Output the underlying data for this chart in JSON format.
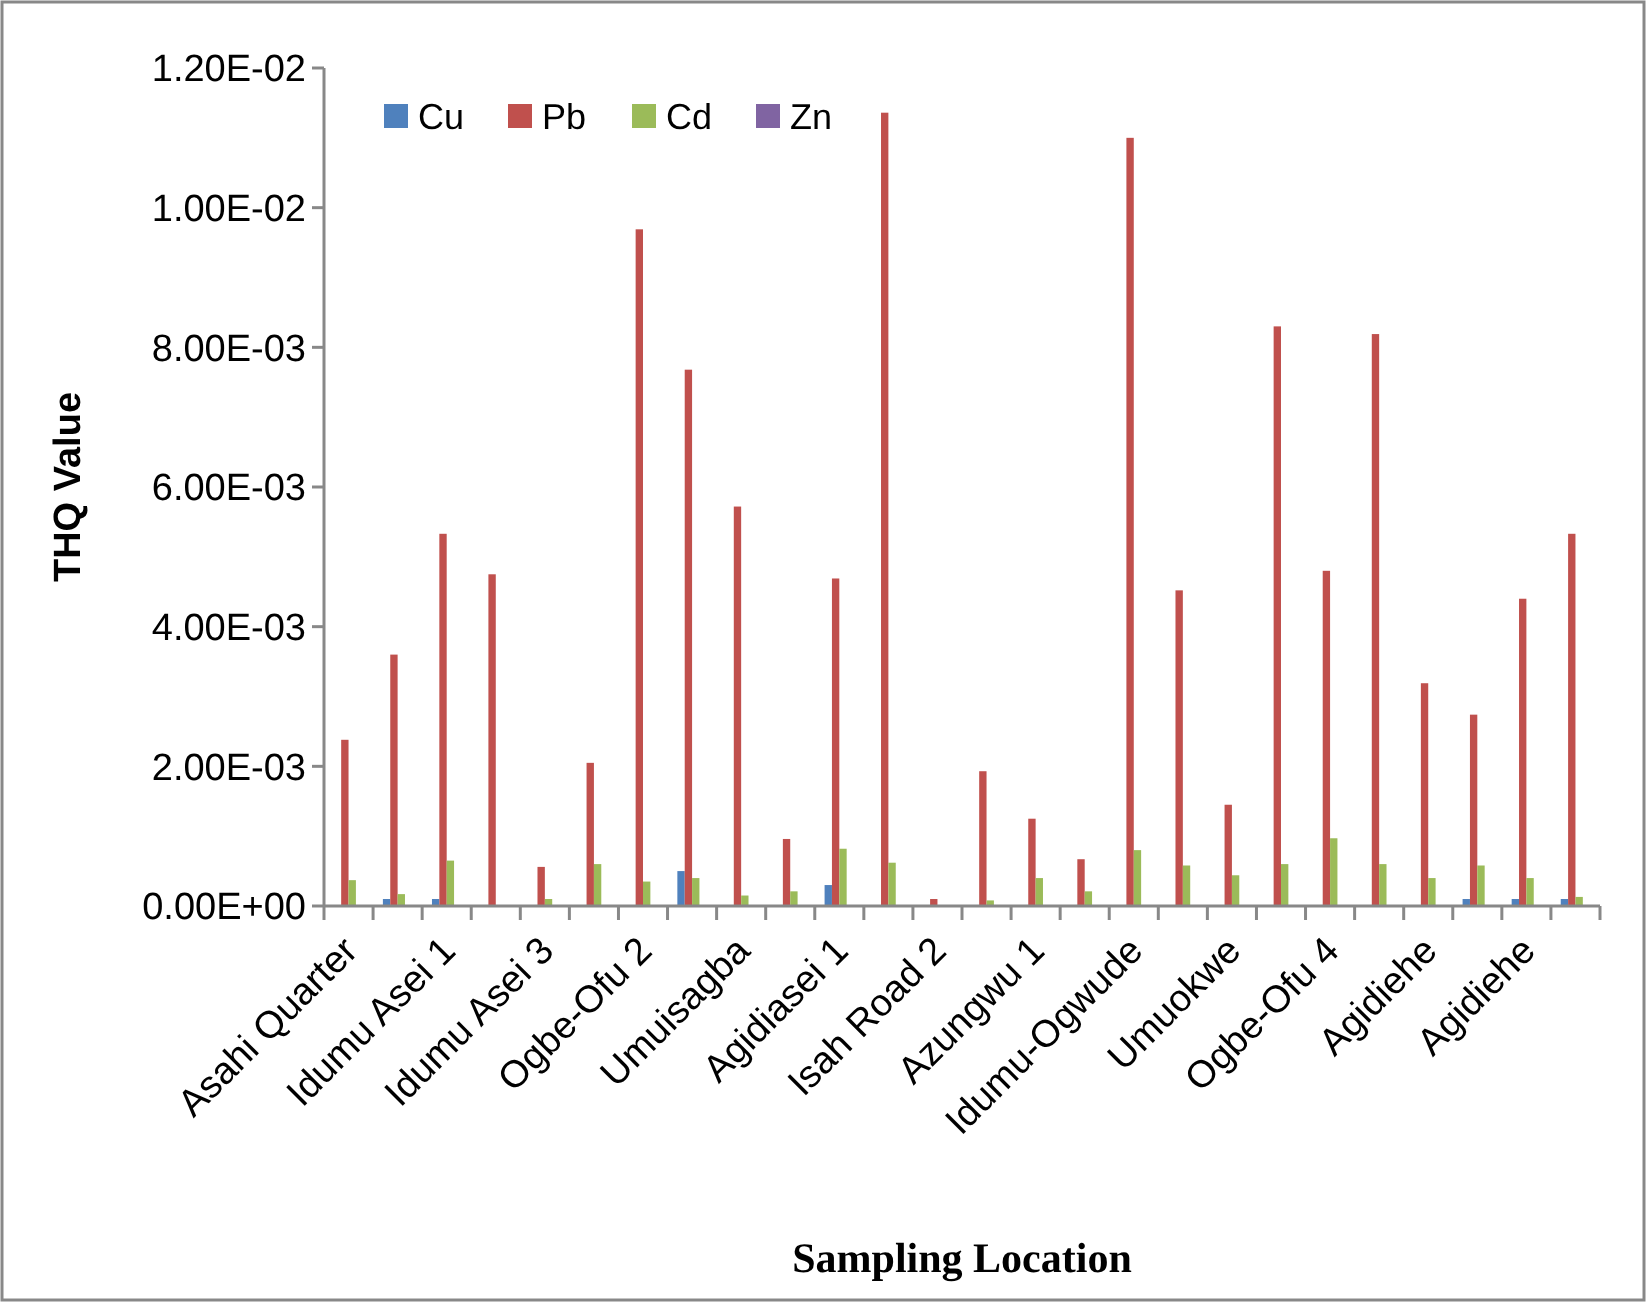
{
  "chart_data": {
    "type": "bar",
    "xlabel": "Sampling Location",
    "ylabel": "THQ Value",
    "categories": [
      "Asahi Quarter",
      null,
      "Idumu Asei 1",
      null,
      "Idumu Asei 3",
      null,
      "Ogbe-Ofu 2",
      null,
      "Umuisagba",
      null,
      "Agidiasei 1",
      null,
      "Isah Road 2",
      null,
      "Azungwu 1",
      null,
      "Idumu-Ogwude",
      null,
      "Umuokwe",
      null,
      "Ogbe-Ofu 4",
      null,
      "Agidiehe",
      null,
      "Agidiehe",
      null
    ],
    "series": [
      {
        "name": "Cu",
        "color": "#4f81bd",
        "values": [
          0,
          0.0001,
          0.0001,
          0,
          0,
          0,
          0,
          0.0005,
          0,
          0,
          0.0003,
          0,
          0,
          0,
          0,
          0,
          0,
          0,
          0,
          0,
          0,
          0,
          0,
          0.0001,
          0.0001,
          0.0001
        ]
      },
      {
        "name": "Pb",
        "color": "#c0504d",
        "values": [
          0.00238,
          0.0036,
          0.00533,
          0.00475,
          0.00056,
          0.00205,
          0.00969,
          0.00768,
          0.00572,
          0.00096,
          0.00469,
          0.01136,
          0.0001,
          0.00193,
          0.00125,
          0.00067,
          0.011,
          0.00452,
          0.00145,
          0.0083,
          0.0048,
          0.00819,
          0.00319,
          0.00274,
          0.0044,
          0.00533
        ]
      },
      {
        "name": "Cd",
        "color": "#9bbb59",
        "values": [
          0.00037,
          0.00017,
          0.00065,
          0,
          0.0001,
          0.0006,
          0.00035,
          0.0004,
          0.00015,
          0.00021,
          0.00082,
          0.00062,
          0,
          8e-05,
          0.0004,
          0.00021,
          0.0008,
          0.00058,
          0.00044,
          0.0006,
          0.00097,
          0.0006,
          0.0004,
          0.00058,
          0.0004,
          0.00013
        ]
      },
      {
        "name": "Zn",
        "color": "#8064a2",
        "values": [
          0,
          0,
          0,
          0,
          0,
          0,
          0,
          0,
          0,
          0,
          0,
          0,
          0,
          0,
          0,
          0,
          0,
          0,
          0,
          0,
          0,
          0,
          0,
          0,
          0,
          0
        ]
      }
    ],
    "ylim": [
      0,
      0.012
    ],
    "yticks": [
      {
        "value": 0,
        "label": "0.00E+00"
      },
      {
        "value": 0.002,
        "label": "2.00E-03"
      },
      {
        "value": 0.004,
        "label": "4.00E-03"
      },
      {
        "value": 0.006,
        "label": "6.00E-03"
      },
      {
        "value": 0.008,
        "label": "8.00E-03"
      },
      {
        "value": 0.01,
        "label": "1.00E-02"
      },
      {
        "value": 0.012,
        "label": "1.20E-02"
      }
    ],
    "grid": false,
    "legend": "top left"
  }
}
